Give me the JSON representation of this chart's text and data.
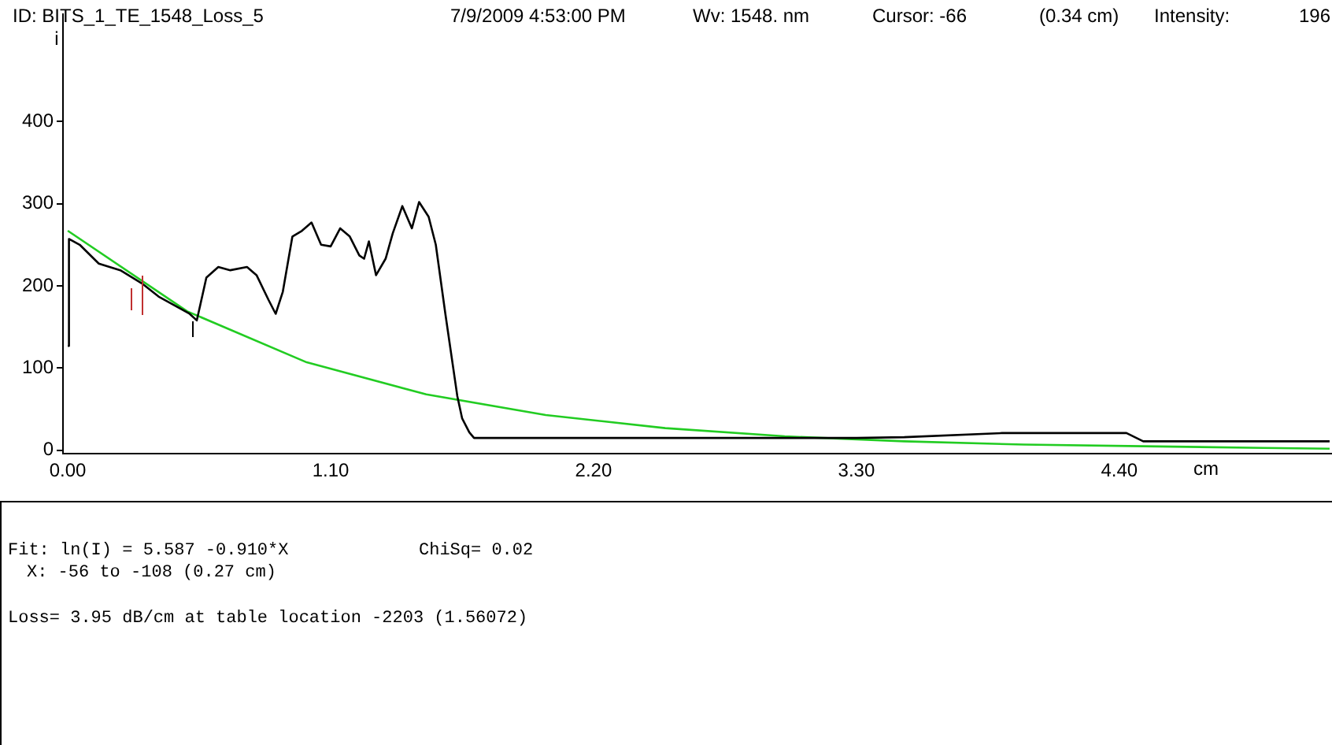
{
  "chart_data": {
    "type": "line",
    "ylabel": "i",
    "xlabel": "cm",
    "annotations": [
      "ID: BITS_1_TE_1548_Loss_5",
      "7/9/2009 4:53:00 PM",
      "Wv: 1548. nm",
      "Cursor: -66",
      "(0.34 cm)",
      "Intensity:",
      "196",
      "Fit: ln(I) = 5.587 -0.910*X",
      "ChiSq= 0.02",
      "X: -56 to -108 (0.27 cm)",
      "Loss= 3.95 dB/cm at table location -2203 (1.56072)"
    ],
    "xlim": [
      -0.02,
      5.29
    ],
    "ylim": [
      -4,
      530
    ],
    "xticks": [
      {
        "value": 0,
        "label": "0.00"
      },
      {
        "value": 1.1,
        "label": "1.10"
      },
      {
        "value": 2.2,
        "label": "2.20"
      },
      {
        "value": 3.3,
        "label": "3.30"
      },
      {
        "value": 4.4,
        "label": "4.40"
      }
    ],
    "yticks": [
      0,
      100,
      200,
      300,
      400
    ],
    "grid": false,
    "legend": false,
    "marker": "none",
    "line_style": "solid",
    "series": [
      {
        "color": "#000000",
        "x": [
          0,
          0.005,
          0.05,
          0.13,
          0.22,
          0.31,
          0.38,
          0.51,
          0.54,
          0.58,
          0.63,
          0.68,
          0.75,
          0.79,
          0.84,
          0.87,
          0.9,
          0.94,
          0.98,
          1.02,
          1.06,
          1.1,
          1.14,
          1.18,
          1.22,
          1.24,
          1.26,
          1.29,
          1.33,
          1.36,
          1.4,
          1.44,
          1.47,
          1.51,
          1.54,
          1.58,
          1.63,
          1.65,
          1.68,
          1.7,
          2.5,
          3.3,
          3.5,
          3.91,
          4.43,
          4.5,
          5.28
        ],
        "values": [
          127,
          257,
          250,
          227,
          219,
          203,
          187,
          166,
          158,
          210,
          223,
          219,
          223,
          213,
          183,
          166,
          193,
          260,
          267,
          277,
          250,
          248,
          270,
          260,
          237,
          233,
          254,
          213,
          233,
          264,
          297,
          270,
          302,
          284,
          250,
          166,
          66,
          39,
          22,
          15,
          15,
          15,
          16,
          21,
          21,
          11,
          11
        ]
      },
      {
        "color": "#22cc22",
        "x": [
          0,
          0.5,
          1,
          1.5,
          2,
          2.5,
          3,
          3.5,
          4,
          4.5,
          5,
          5.28
        ],
        "values": [
          267,
          169,
          107,
          68,
          43,
          27,
          17,
          11,
          7,
          5,
          3,
          2
        ]
      }
    ]
  }
}
